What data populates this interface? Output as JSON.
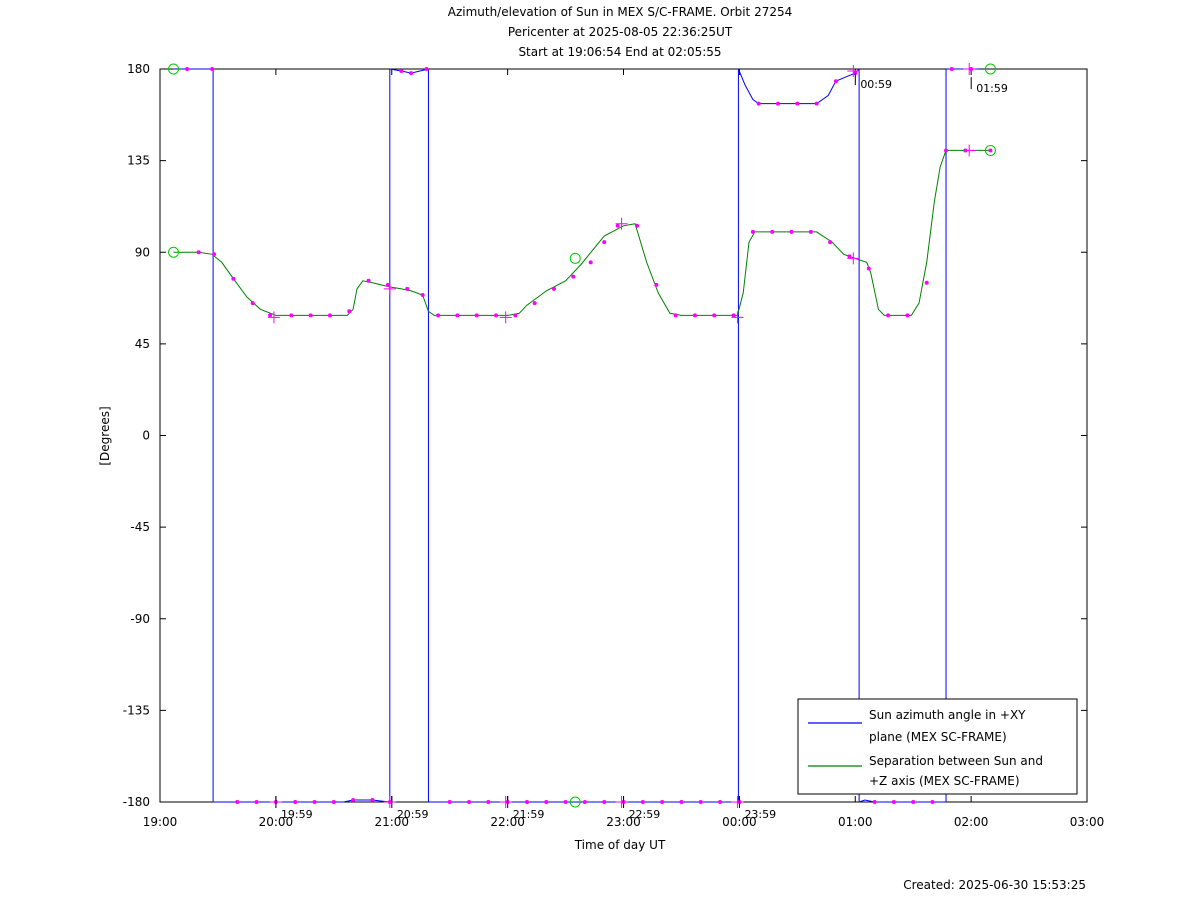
{
  "chart_data": {
    "type": "line",
    "title": [
      "Azimuth/elevation of Sun in MEX S/C-FRAME.  Orbit 27254",
      "Pericenter at 2025-08-05 22:36:25UT",
      "Start at 19:06:54 End at 02:05:55"
    ],
    "xlabel": "Time of day UT",
    "ylabel": "[Degrees]",
    "xlim": [
      0,
      480
    ],
    "ylim": [
      -180,
      180
    ],
    "x_unit": "minutes after 19:00 UT",
    "x_ticks": [
      {
        "x": 0,
        "label": "19:00"
      },
      {
        "x": 60,
        "label": "20:00"
      },
      {
        "x": 120,
        "label": "21:00"
      },
      {
        "x": 180,
        "label": "22:00"
      },
      {
        "x": 240,
        "label": "23:00"
      },
      {
        "x": 300,
        "label": "00:00"
      },
      {
        "x": 360,
        "label": "01:00"
      },
      {
        "x": 420,
        "label": "02:00"
      },
      {
        "x": 480,
        "label": "03:00"
      }
    ],
    "y_ticks": [
      {
        "y": 180,
        "label": "180"
      },
      {
        "y": 135,
        "label": "135"
      },
      {
        "y": 90,
        "label": "90"
      },
      {
        "y": 45,
        "label": "45"
      },
      {
        "y": 0,
        "label": "0"
      },
      {
        "y": -45,
        "label": "-45"
      },
      {
        "y": -90,
        "label": "-90"
      },
      {
        "y": -135,
        "label": "-135"
      },
      {
        "y": -180,
        "label": "-180"
      }
    ],
    "hour_markers": [
      {
        "x": 59,
        "label": "19:59"
      },
      {
        "x": 119,
        "label": "20:59"
      },
      {
        "x": 179,
        "label": "21:59"
      },
      {
        "x": 239,
        "label": "22:59"
      },
      {
        "x": 299,
        "label": "23:59"
      },
      {
        "x": 359,
        "label": "00:59"
      },
      {
        "x": 419,
        "label": "01:59"
      }
    ],
    "series": [
      {
        "name": "Sun azimuth angle in +XY plane (MEX SC-FRAME)",
        "color": "#0000ff",
        "segments": [
          [
            [
              7,
              180
            ],
            [
              27.5,
              180
            ]
          ],
          [
            [
              27.5,
              -180
            ],
            [
              40,
              -180
            ],
            [
              60,
              -180
            ],
            [
              80,
              -180
            ],
            [
              95,
              -180
            ],
            [
              100,
              -179
            ],
            [
              110,
              -179
            ],
            [
              119,
              -180
            ]
          ],
          [
            [
              119,
              180
            ],
            [
              125,
              179
            ],
            [
              130,
              178
            ],
            [
              139,
              180
            ]
          ],
          [
            [
              139,
              -180
            ],
            [
              160,
              -180
            ],
            [
              180,
              -180
            ],
            [
              210,
              -180
            ],
            [
              240,
              -180
            ],
            [
              280,
              -180
            ],
            [
              299.5,
              -180
            ]
          ],
          [
            [
              299.5,
              180
            ],
            [
              303,
              172
            ],
            [
              307,
              165
            ],
            [
              310,
              163
            ],
            [
              320,
              163
            ],
            [
              330,
              163
            ],
            [
              340,
              163
            ],
            [
              346,
              167
            ],
            [
              350,
              174
            ],
            [
              355,
              176
            ],
            [
              360,
              178
            ],
            [
              362,
              180
            ]
          ],
          [
            [
              362,
              -180
            ],
            [
              365,
              -179
            ],
            [
              370,
              -180
            ],
            [
              380,
              -180
            ],
            [
              395,
              -180
            ],
            [
              407,
              -180
            ]
          ],
          [
            [
              407,
              180
            ],
            [
              420,
              180
            ],
            [
              424,
              180
            ]
          ]
        ],
        "dots": [
          [
            14,
            180
          ],
          [
            27,
            180
          ],
          [
            40,
            -180
          ],
          [
            50,
            -180
          ],
          [
            60,
            -180
          ],
          [
            70,
            -180
          ],
          [
            80,
            -180
          ],
          [
            90,
            -180
          ],
          [
            100,
            -179
          ],
          [
            110,
            -179
          ],
          [
            119,
            -180
          ],
          [
            125,
            179
          ],
          [
            130,
            178
          ],
          [
            138,
            180
          ],
          [
            150,
            -180
          ],
          [
            160,
            -180
          ],
          [
            170,
            -180
          ],
          [
            180,
            -180
          ],
          [
            190,
            -180
          ],
          [
            200,
            -180
          ],
          [
            210,
            -180
          ],
          [
            220,
            -180
          ],
          [
            230,
            -180
          ],
          [
            240,
            -180
          ],
          [
            250,
            -180
          ],
          [
            260,
            -180
          ],
          [
            270,
            -180
          ],
          [
            280,
            -180
          ],
          [
            290,
            -180
          ],
          [
            300,
            -180
          ],
          [
            310,
            163
          ],
          [
            320,
            163
          ],
          [
            330,
            163
          ],
          [
            340,
            163
          ],
          [
            350,
            174
          ],
          [
            360,
            178
          ],
          [
            370,
            -180
          ],
          [
            380,
            -180
          ],
          [
            390,
            -180
          ],
          [
            400,
            -180
          ],
          [
            410,
            180
          ],
          [
            420,
            180
          ]
        ],
        "pluses": [
          [
            60,
            -180
          ],
          [
            119,
            -180
          ],
          [
            179,
            -180
          ],
          [
            239,
            -180
          ],
          [
            299,
            -180
          ],
          [
            359,
            179
          ],
          [
            419,
            180
          ]
        ],
        "circles": [
          [
            7,
            180
          ],
          [
            430,
            180
          ],
          [
            215,
            -180
          ]
        ]
      },
      {
        "name": "Separation between Sun and +Z axis (MEX SC-FRAME)",
        "color": "#008000",
        "segments": [
          [
            [
              7,
              90
            ],
            [
              20,
              90
            ],
            [
              27,
              89
            ],
            [
              32,
              85
            ],
            [
              38,
              77
            ],
            [
              45,
              68
            ],
            [
              52,
              62
            ],
            [
              60,
              59
            ],
            [
              70,
              59
            ],
            [
              80,
              59
            ],
            [
              90,
              59
            ],
            [
              97,
              59
            ],
            [
              100,
              62
            ],
            [
              102,
              72
            ],
            [
              105,
              76
            ],
            [
              110,
              75
            ],
            [
              119,
              73
            ],
            [
              125,
              72
            ],
            [
              130,
              71
            ],
            [
              136,
              69
            ],
            [
              139,
              61
            ],
            [
              142,
              59
            ],
            [
              150,
              59
            ],
            [
              160,
              59
            ],
            [
              170,
              59
            ],
            [
              180,
              59
            ],
            [
              186,
              60
            ],
            [
              190,
              64
            ],
            [
              200,
              71
            ],
            [
              210,
              76
            ],
            [
              218,
              84
            ],
            [
              224,
              91
            ],
            [
              230,
              98
            ],
            [
              240,
              103
            ],
            [
              246,
              104
            ],
            [
              252,
              85
            ],
            [
              258,
              70
            ],
            [
              264,
              60
            ],
            [
              270,
              59
            ],
            [
              280,
              59
            ],
            [
              290,
              59
            ],
            [
              299,
              59
            ],
            [
              302,
              70
            ],
            [
              305,
              95
            ],
            [
              308,
              100
            ],
            [
              320,
              100
            ],
            [
              330,
              100
            ],
            [
              340,
              100
            ],
            [
              348,
              95
            ],
            [
              354,
              89
            ],
            [
              360,
              87
            ],
            [
              366,
              85
            ],
            [
              368,
              80
            ],
            [
              372,
              62
            ],
            [
              375,
              59
            ],
            [
              380,
              59
            ],
            [
              389,
              59
            ],
            [
              393,
              65
            ],
            [
              397,
              85
            ],
            [
              401,
              115
            ],
            [
              404,
              132
            ],
            [
              407,
              140
            ],
            [
              420,
              140
            ],
            [
              430,
              140
            ]
          ]
        ],
        "dots": [
          [
            20,
            90
          ],
          [
            28,
            89
          ],
          [
            38,
            77
          ],
          [
            48,
            65
          ],
          [
            57,
            59
          ],
          [
            68,
            59
          ],
          [
            78,
            59
          ],
          [
            88,
            59
          ],
          [
            98,
            61
          ],
          [
            108,
            76
          ],
          [
            118,
            74
          ],
          [
            128,
            72
          ],
          [
            136,
            69
          ],
          [
            144,
            59
          ],
          [
            154,
            59
          ],
          [
            164,
            59
          ],
          [
            174,
            59
          ],
          [
            184,
            59
          ],
          [
            194,
            65
          ],
          [
            204,
            72
          ],
          [
            214,
            78
          ],
          [
            223,
            85
          ],
          [
            230,
            95
          ],
          [
            237,
            103
          ],
          [
            247,
            103
          ],
          [
            257,
            74
          ],
          [
            267,
            59
          ],
          [
            277,
            59
          ],
          [
            287,
            59
          ],
          [
            297,
            59
          ],
          [
            307,
            100
          ],
          [
            317,
            100
          ],
          [
            327,
            100
          ],
          [
            337,
            100
          ],
          [
            347,
            95
          ],
          [
            357,
            88
          ],
          [
            367,
            82
          ],
          [
            377,
            59
          ],
          [
            387,
            59
          ],
          [
            397,
            75
          ],
          [
            407,
            140
          ],
          [
            417,
            140
          ],
          [
            430,
            140
          ]
        ],
        "pluses": [
          [
            59,
            58
          ],
          [
            119,
            72
          ],
          [
            179,
            58
          ],
          [
            239,
            104
          ],
          [
            299,
            58
          ],
          [
            359,
            87
          ],
          [
            419,
            140
          ]
        ],
        "circles": [
          [
            7,
            90
          ],
          [
            215,
            87
          ],
          [
            430,
            140
          ]
        ]
      }
    ],
    "legend": {
      "position": "bottom-right",
      "entries": [
        {
          "label_lines": [
            "Sun azimuth angle in +XY",
            "plane (MEX SC-FRAME)"
          ],
          "color": "#0000ff"
        },
        {
          "label_lines": [
            "Separation between Sun and",
            "+Z axis (MEX SC-FRAME)"
          ],
          "color": "#008000"
        }
      ]
    },
    "marker_colors": {
      "dots": "#ff00ff",
      "circles": "#00cc00"
    },
    "grid": false
  },
  "footer": {
    "created": "Created: 2025-06-30 15:53:25"
  }
}
